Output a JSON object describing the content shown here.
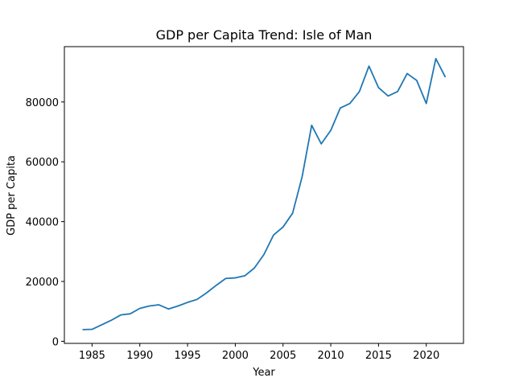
{
  "chart_data": {
    "type": "line",
    "title": "GDP per Capita Trend: Isle of Man",
    "xlabel": "Year",
    "ylabel": "GDP per Capita",
    "xlim": [
      1982.1,
      2023.9
    ],
    "ylim": [
      -700,
      98500
    ],
    "xticks": [
      1985,
      1990,
      1995,
      2000,
      2005,
      2010,
      2015,
      2020
    ],
    "yticks": [
      0,
      20000,
      40000,
      60000,
      80000
    ],
    "grid": false,
    "line_color": "#1f77b4",
    "series": [
      {
        "x": [
          1984,
          1985,
          1986,
          1987,
          1988,
          1989,
          1990,
          1991,
          1992,
          1993,
          1994,
          1995,
          1996,
          1997,
          1998,
          1999,
          2000,
          2001,
          2002,
          2003,
          2004,
          2005,
          2006,
          2007,
          2008,
          2009,
          2010,
          2011,
          2012,
          2013,
          2014,
          2015,
          2016,
          2017,
          2018,
          2019,
          2020,
          2021,
          2022
        ],
        "values": [
          3900,
          4000,
          5500,
          7000,
          8800,
          9200,
          11000,
          11800,
          12200,
          10800,
          11800,
          13000,
          14000,
          16200,
          18700,
          21000,
          21200,
          21900,
          24500,
          29000,
          35500,
          38200,
          42800,
          55000,
          72200,
          66000,
          70500,
          78000,
          79500,
          83500,
          92000,
          84800,
          82000,
          83500,
          89500,
          87200,
          79500,
          94500,
          88300
        ]
      }
    ]
  }
}
